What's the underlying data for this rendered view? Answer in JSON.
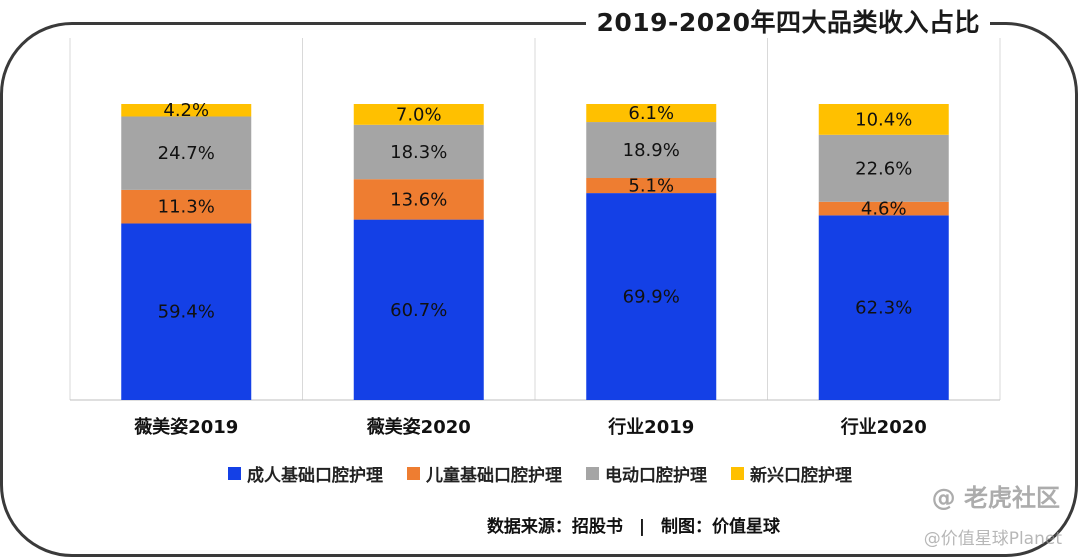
{
  "chart_data": {
    "type": "bar",
    "stacked": true,
    "title": "2019-2020年四大品类收入占比",
    "categories": [
      "薇美姿2019",
      "薇美姿2020",
      "行业2019",
      "行业2020"
    ],
    "series": [
      {
        "name": "成人基础口腔护理",
        "color": "#1440e6",
        "values": [
          59.4,
          60.7,
          69.9,
          62.3
        ]
      },
      {
        "name": "儿童基础口腔护理",
        "color": "#ee7d31",
        "values": [
          11.3,
          13.6,
          5.1,
          4.6
        ]
      },
      {
        "name": "电动口腔护理",
        "color": "#a5a5a5",
        "values": [
          24.7,
          18.3,
          18.9,
          22.6
        ]
      },
      {
        "name": "新兴口腔护理",
        "color": "#ffc000",
        "values": [
          4.2,
          7.0,
          6.1,
          10.4
        ]
      }
    ],
    "ylim": [
      0,
      100
    ],
    "unit": "%"
  },
  "legend_items": [
    "成人基础口腔护理",
    "儿童基础口腔护理",
    "电动口腔护理",
    "新兴口腔护理"
  ],
  "source": {
    "data_source": "数据来源：招股书",
    "separator": "|",
    "author": "制图：价值星球"
  },
  "watermark": {
    "text": "@ 老虎社区",
    "sub": "@价值星球Planet"
  }
}
